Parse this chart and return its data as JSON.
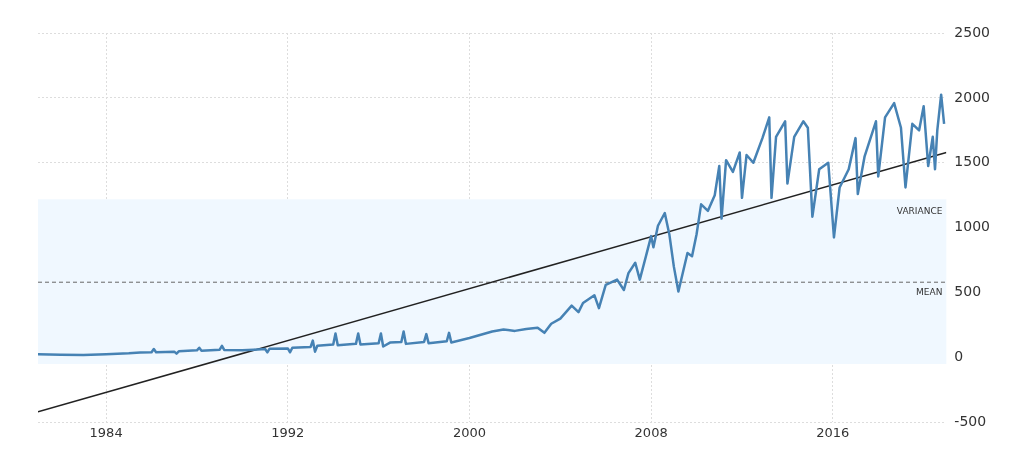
{
  "chart_data": {
    "type": "line",
    "xlim": [
      1981,
      2021
    ],
    "xticks": [
      1984,
      1992,
      2000,
      2008,
      2016
    ],
    "ylim": [
      -500,
      2500
    ],
    "yticks": [
      -500,
      0,
      500,
      1000,
      1500,
      2000,
      2500
    ],
    "grid": true,
    "legend": false,
    "marker": "none",
    "line_style": "solid",
    "series": [
      {
        "color": "#4682b4",
        "x": [
          1981,
          1982,
          1983,
          1984,
          1985,
          1985.5,
          1986,
          1986.1,
          1986.2,
          1987,
          1987.1,
          1987.2,
          1988,
          1988.1,
          1988.2,
          1989,
          1989.1,
          1989.2,
          1990,
          1990.5,
          1991,
          1991.1,
          1991.2,
          1992,
          1992.1,
          1992.2,
          1993,
          1993.1,
          1993.2,
          1993.3,
          1994,
          1994.1,
          1994.2,
          1995,
          1995.1,
          1995.2,
          1996,
          1996.1,
          1996.2,
          1996.5,
          1997,
          1997.1,
          1997.2,
          1998,
          1998.1,
          1998.2,
          1999,
          1999.1,
          1999.2,
          2000,
          2000.5,
          2001,
          2001.5,
          2002,
          2002.5,
          2003,
          2003.3,
          2003.6,
          2004,
          2004.5,
          2004.8,
          2005,
          2005.5,
          2005.7,
          2006,
          2006.5,
          2006.8,
          2007,
          2007.3,
          2007.5,
          2007.8,
          2008,
          2008.1,
          2008.3,
          2008.6,
          2008.8,
          2009,
          2009.2,
          2009.6,
          2009.8,
          2010,
          2010.2,
          2010.5,
          2010.8,
          2011,
          2011.1,
          2011.3,
          2011.6,
          2011.9,
          2012,
          2012.2,
          2012.5,
          2012.9,
          2013.2,
          2013.3,
          2013.5,
          2013.9,
          2014,
          2014.3,
          2014.7,
          2014.9,
          2015.1,
          2015.4,
          2015.8,
          2016.05,
          2016.3,
          2016.7,
          2017,
          2017.1,
          2017.4,
          2017.9,
          2018,
          2018.3,
          2018.7,
          2019,
          2019.2,
          2019.5,
          2019.8,
          2020,
          2020.2,
          2020.4,
          2020.5,
          2020.6,
          2020.77,
          2020.9
        ],
        "values": [
          25,
          22,
          20,
          25,
          32,
          38,
          40,
          65,
          40,
          45,
          30,
          48,
          55,
          75,
          52,
          60,
          90,
          58,
          55,
          60,
          65,
          40,
          68,
          70,
          40,
          75,
          80,
          130,
          45,
          90,
          100,
          185,
          95,
          105,
          185,
          100,
          110,
          185,
          85,
          115,
          120,
          200,
          105,
          120,
          180,
          110,
          125,
          190,
          115,
          150,
          175,
          200,
          215,
          205,
          220,
          230,
          190,
          260,
          300,
          400,
          350,
          420,
          480,
          380,
          560,
          600,
          520,
          650,
          730,
          600,
          800,
          935,
          850,
          1015,
          1113,
          950,
          700,
          508,
          805,
          780,
          950,
          1180,
          1130,
          1250,
          1475,
          1070,
          1520,
          1430,
          1580,
          1230,
          1560,
          1500,
          1690,
          1850,
          1230,
          1700,
          1820,
          1340,
          1700,
          1820,
          1770,
          1085,
          1450,
          1500,
          925,
          1310,
          1450,
          1690,
          1260,
          1550,
          1820,
          1395,
          1850,
          1960,
          1770,
          1310,
          1800,
          1750,
          1935,
          1475,
          1700,
          1450,
          1750,
          2025,
          1800
        ]
      },
      {
        "type": "line",
        "color": "#222222",
        "x": [
          1981,
          2021
        ],
        "values": [
          -419,
          1580
        ]
      }
    ],
    "ref_lines": [
      {
        "axis": "y",
        "value": 580,
        "label": "MEAN",
        "line_style": "dashed",
        "color": "#666666"
      }
    ],
    "bands": [
      {
        "axis": "y",
        "from": -50,
        "to": 1220,
        "label": "VARIANCE",
        "color": "#f0f8ff"
      }
    ]
  }
}
